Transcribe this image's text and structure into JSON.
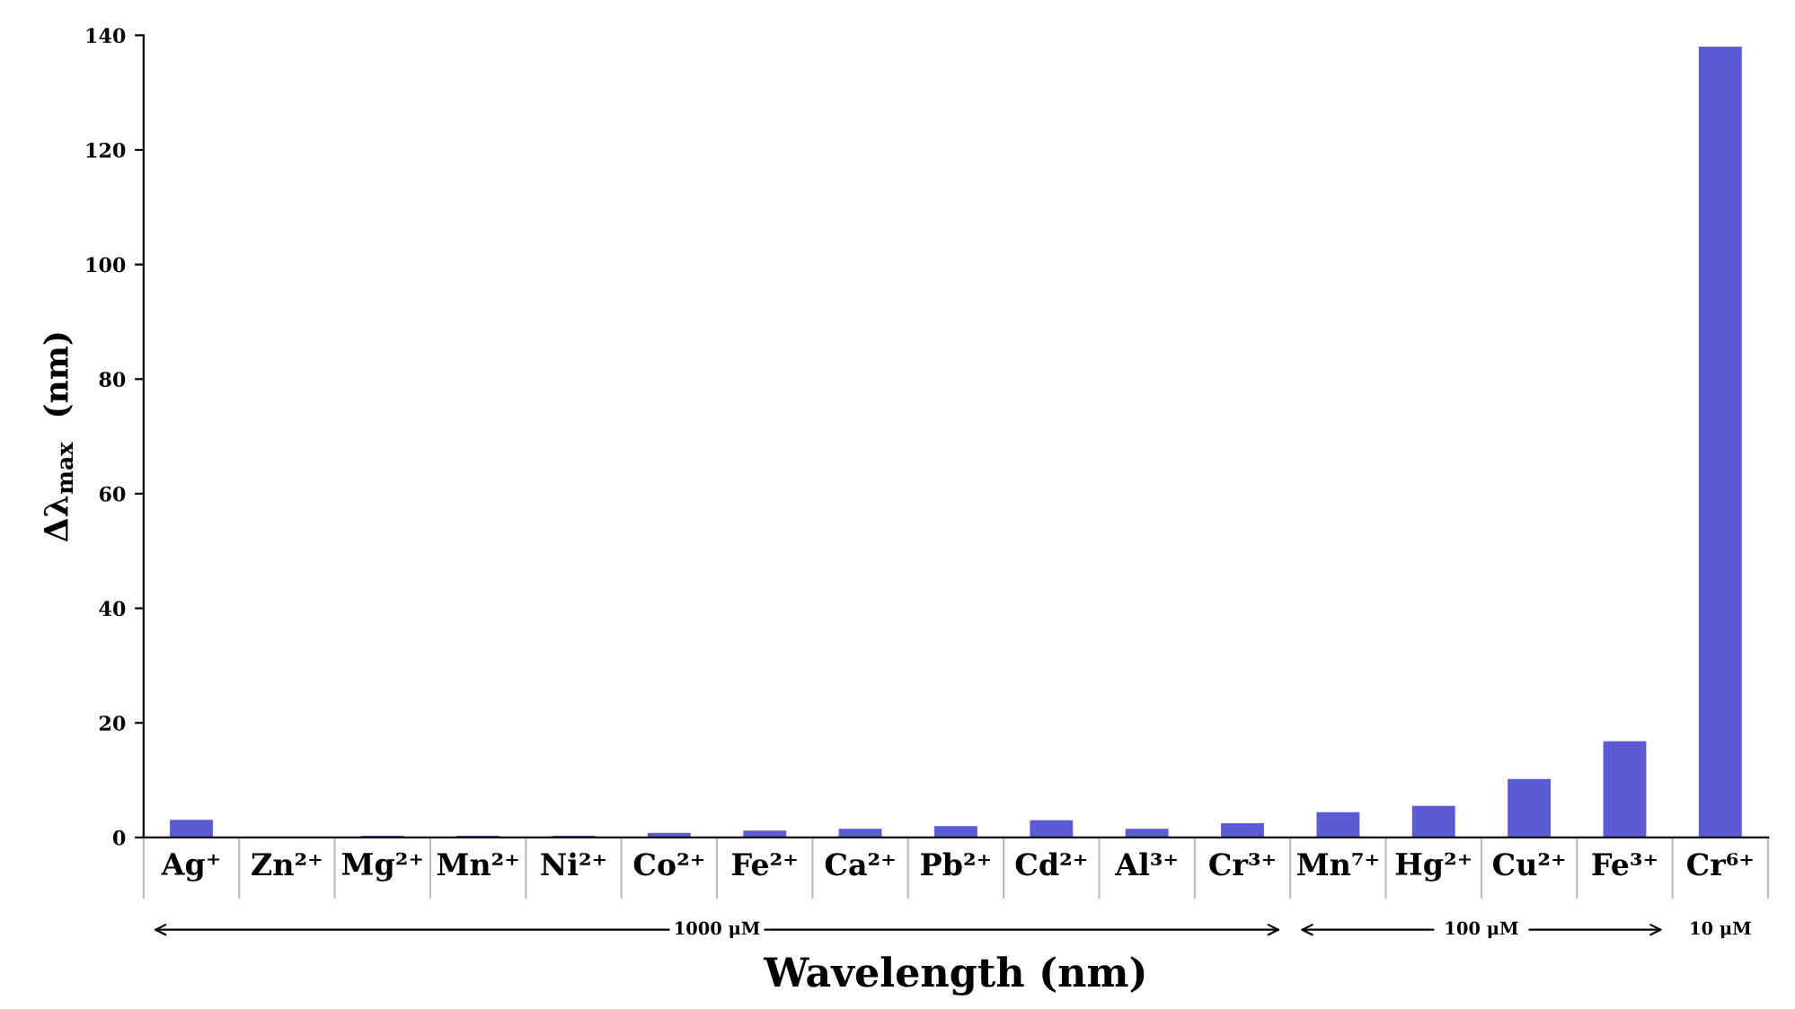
{
  "chart_data": {
    "type": "bar",
    "xlabel": "Wavelength (nm)",
    "ylabel": "Δλ$_{max}$  (nm)",
    "categories": [
      "Ag⁺",
      "Zn²⁺",
      "Mg²⁺",
      "Mn²⁺",
      "Ni²⁺",
      "Co²⁺",
      "Fe²⁺",
      "Ca²⁺",
      "Pb²⁺",
      "Cd²⁺",
      "Al³⁺",
      "Cr³⁺",
      "Mn⁷⁺",
      "Hg²⁺",
      "Cu²⁺",
      "Fe³⁺",
      "Cr⁶⁺"
    ],
    "values": [
      3.1,
      0,
      0.3,
      0.3,
      0.3,
      0.8,
      1.2,
      1.5,
      2,
      3,
      1.5,
      2.5,
      4.4,
      5.5,
      10.2,
      16.8,
      138
    ],
    "color": "#5b5bd6",
    "ylim": [
      0,
      140
    ],
    "yticks": [
      0,
      20,
      40,
      60,
      80,
      100,
      120,
      140
    ],
    "grid": false,
    "annotations": [
      "1000 μM",
      "100 μM",
      "10 μM"
    ]
  }
}
